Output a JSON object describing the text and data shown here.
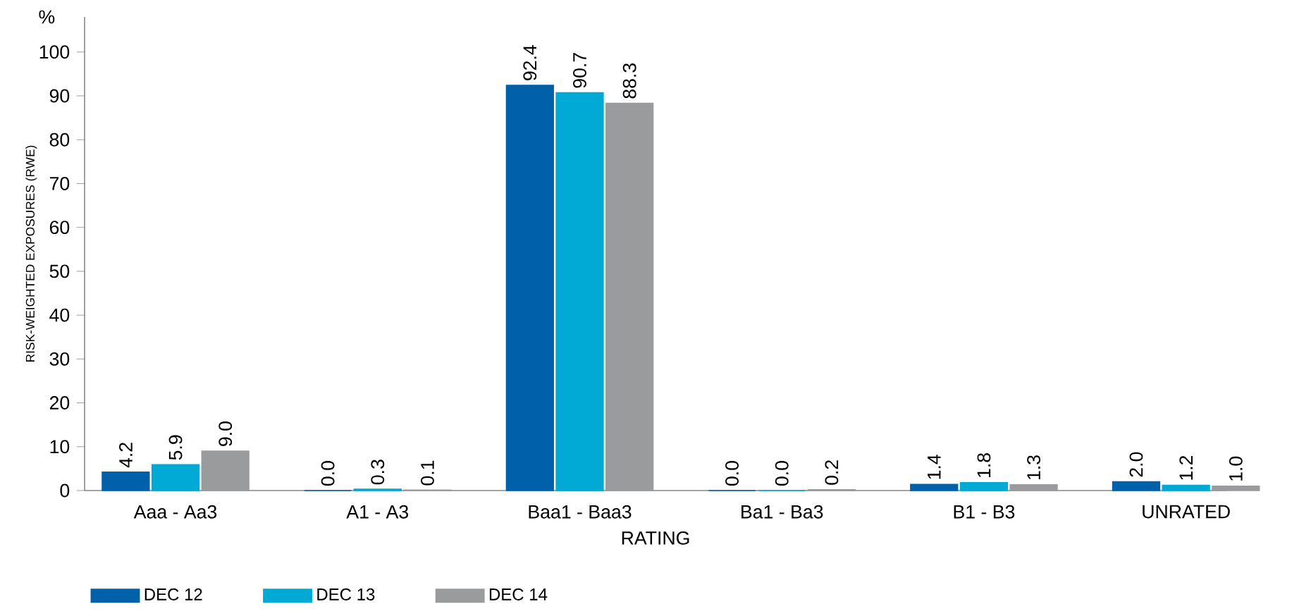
{
  "chart_data": {
    "type": "bar",
    "xlabel": "RATING",
    "ylabel": "RISK-WEIGHTED EXPOSURES (RWE)",
    "annotations": [
      "%"
    ],
    "categories": [
      "Aaa - Aa3",
      "A1 - A3",
      "Baa1 - Baa3",
      "Ba1 - Ba3",
      "B1 - B3",
      "UNRATED"
    ],
    "series": [
      {
        "name": "DEC 12",
        "color": "#0060a9",
        "values": [
          4.2,
          0.0,
          92.4,
          0.0,
          1.4,
          2.0
        ],
        "value_labels": [
          "4.2",
          "0.0",
          "92.4",
          "0.0",
          "1.4",
          "2.0"
        ]
      },
      {
        "name": "DEC 13",
        "color": "#00aad4",
        "values": [
          5.9,
          0.3,
          90.7,
          0.0,
          1.8,
          1.2
        ],
        "value_labels": [
          "5.9",
          "0.3",
          "90.7",
          "0.0",
          "1.8",
          "1.2"
        ]
      },
      {
        "name": "DEC 14",
        "color": "#9a9b9d",
        "values": [
          9.0,
          0.1,
          88.3,
          0.2,
          1.3,
          1.0
        ],
        "value_labels": [
          "9.0",
          "0.1",
          "88.3",
          "0.2",
          "1.3",
          "1.0"
        ]
      }
    ],
    "ylim": [
      0,
      108
    ],
    "yticks": [
      0,
      10,
      20,
      30,
      40,
      50,
      60,
      70,
      80,
      90,
      100
    ],
    "grid": false,
    "legend": "bottom left"
  }
}
